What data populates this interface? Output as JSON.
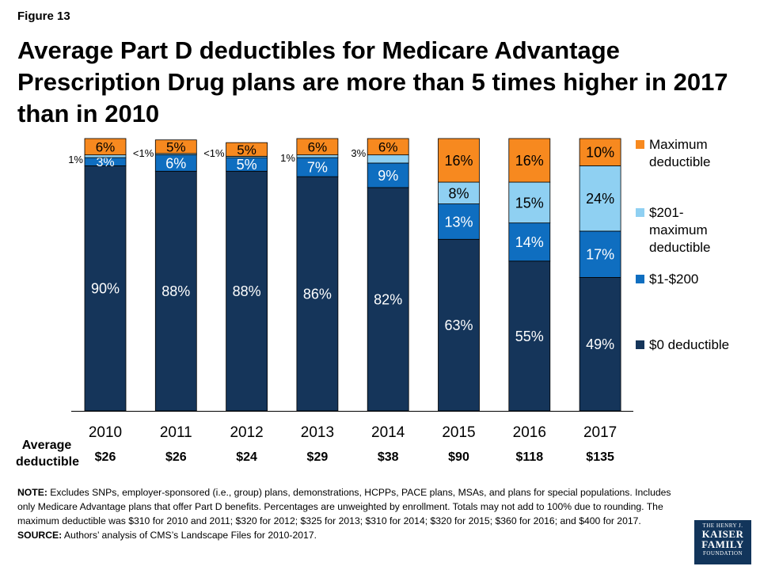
{
  "figure_label": "Figure 13",
  "title": "Average Part D deductibles for Medicare Advantage Prescription Drug plans are more than 5 times higher in 2017 than in 2010",
  "chart_data": {
    "type": "bar",
    "stacked": true,
    "categories": [
      "2010",
      "2011",
      "2012",
      "2013",
      "2014",
      "2015",
      "2016",
      "2017"
    ],
    "ylim": [
      0,
      100
    ],
    "series": [
      {
        "name": "$0 deductible",
        "color": "#15355a",
        "values": [
          90,
          88,
          88,
          86,
          82,
          63,
          55,
          49
        ],
        "labels": [
          "90%",
          "88%",
          "88%",
          "86%",
          "82%",
          "63%",
          "55%",
          "49%"
        ]
      },
      {
        "name": "$1-$200",
        "color": "#0f6ec0",
        "values": [
          3,
          6,
          5,
          7,
          9,
          13,
          14,
          17
        ],
        "labels": [
          "3%",
          "6%",
          "5%",
          "7%",
          "9%",
          "13%",
          "14%",
          "17%"
        ]
      },
      {
        "name": "$201- maximum deductible",
        "color": "#8fd0f2",
        "values": [
          1,
          0.5,
          0.5,
          1,
          3,
          8,
          15,
          24
        ],
        "labels": [
          "1%",
          "<1%",
          "<1%",
          "1%",
          "3%",
          "8%",
          "15%",
          "24%"
        ]
      },
      {
        "name": "Maximum deductible",
        "color": "#f7891f",
        "values": [
          6,
          5,
          5,
          6,
          6,
          16,
          16,
          10
        ],
        "labels": [
          "6%",
          "5%",
          "5%",
          "6%",
          "6%",
          "16%",
          "16%",
          "10%"
        ]
      }
    ],
    "legend_position": "right",
    "grid": false
  },
  "legend": [
    {
      "label": "Maximum deductible",
      "color": "#f7891f"
    },
    {
      "label": "$201- maximum deductible",
      "color": "#8fd0f2"
    },
    {
      "label": "$1-$200",
      "color": "#0f6ec0"
    },
    {
      "label": "$0 deductible",
      "color": "#15355a"
    }
  ],
  "average_deductible": {
    "label": "Average deductible",
    "values": [
      "$26",
      "$26",
      "$24",
      "$29",
      "$38",
      "$90",
      "$118",
      "$135"
    ]
  },
  "note": {
    "note_label": "NOTE:",
    "note_text": " Excludes SNPs, employer-sponsored (i.e., group) plans, demonstrations, HCPPs, PACE plans, MSAs, and plans for special populations. Includes only Medicare Advantage plans that offer Part D benefits. Percentages are unweighted by enrollment. Totals may not add to 100% due to rounding. The maximum deductible was $310 for 2010 and 2011; $320 for 2012; $325 for 2013; $310 for 2014; $320 for 2015; $360 for 2016; and $400 for 2017.",
    "source_label": "SOURCE:",
    "source_text": " Authors’ analysis of CMS’s Landscape Files for 2010-2017."
  },
  "logo": {
    "line1": "THE HENRY J.",
    "line2": "KAISER",
    "line3": "FAMILY",
    "line4": "FOUNDATION"
  }
}
